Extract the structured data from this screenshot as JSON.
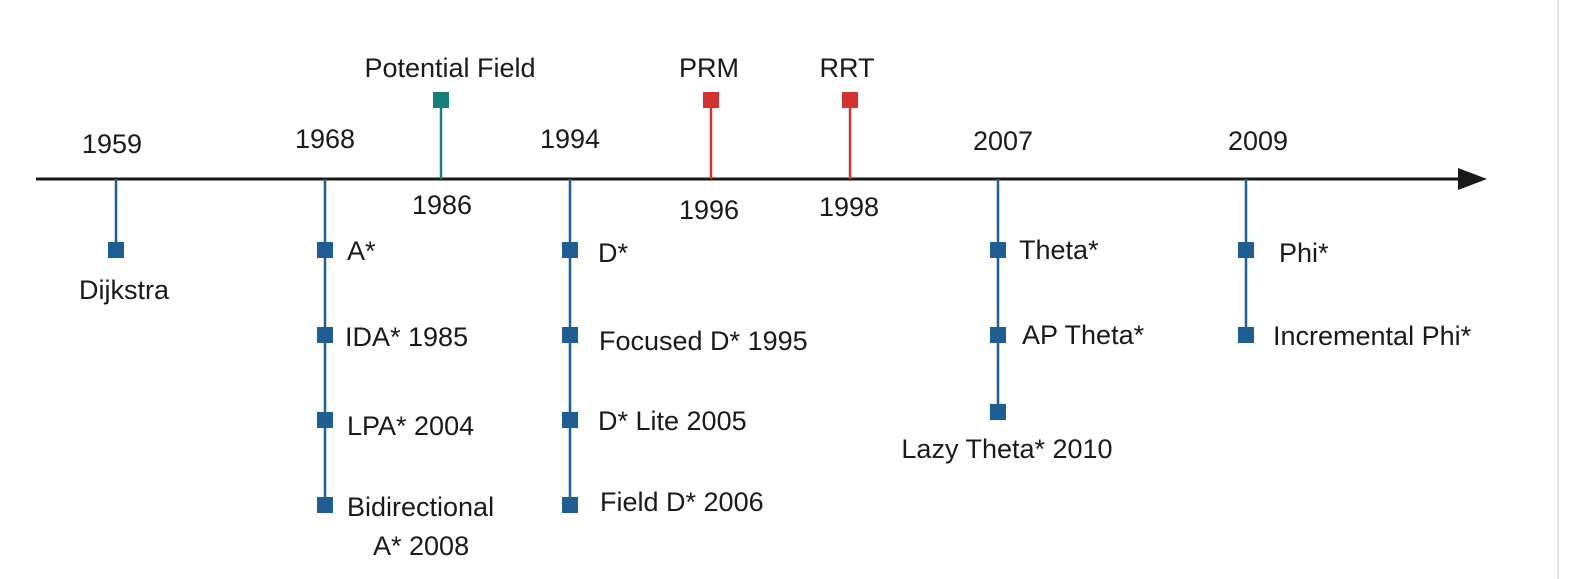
{
  "colors": {
    "blue": "#1d5f94",
    "teal": "#157f7b",
    "red": "#d2332f",
    "axis": "#1a1a1a"
  },
  "years": {
    "y1959": "1959",
    "y1968": "1968",
    "y1986": "1986",
    "y1994": "1994",
    "y1996": "1996",
    "y1998": "1998",
    "y2007": "2007",
    "y2009": "2009"
  },
  "above": {
    "potential_field": "Potential Field",
    "prm": "PRM",
    "rrt": "RRT"
  },
  "algorithms": {
    "dijkstra": "Dijkstra",
    "a_star": "A*",
    "ida_star": "IDA* 1985",
    "lpa_star": "LPA* 2004",
    "bidirectional_line1": "Bidirectional",
    "bidirectional_line2": "A* 2008",
    "d_star": "D*",
    "focused_d_star": "Focused D* 1995",
    "d_star_lite": "D* Lite 2005",
    "field_d_star": "Field D* 2006",
    "theta_star": "Theta*",
    "ap_theta_star": "AP Theta*",
    "lazy_theta_star": "Lazy Theta* 2010",
    "phi_star": "Phi*",
    "incremental_phi_star": "Incremental Phi*"
  }
}
